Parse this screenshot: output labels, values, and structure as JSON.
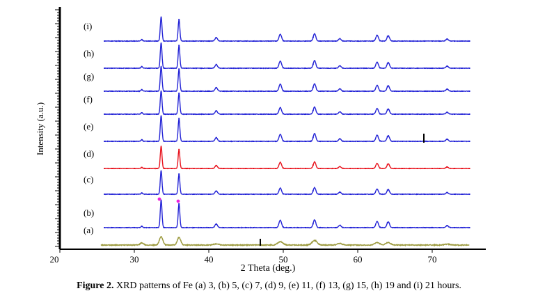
{
  "chart_data": {
    "type": "line",
    "title": "",
    "xlabel": "2 Theta (deg.)",
    "ylabel": "Intensity (a.u.)",
    "xlim": [
      20,
      76
    ],
    "x_ticks": [
      20,
      30,
      40,
      50,
      60,
      70
    ],
    "grid": false,
    "legend": "none",
    "peaks_2theta": [
      31.0,
      33.6,
      36.0,
      41.0,
      49.6,
      54.2,
      57.6,
      62.6,
      64.1,
      72.0
    ],
    "series": [
      {
        "label": "(i)",
        "color": "#2323d6",
        "x_start": 26,
        "x_end": 75,
        "peak_heights": [
          0.06,
          1.0,
          0.88,
          0.14,
          0.28,
          0.3,
          0.1,
          0.24,
          0.22,
          0.08
        ]
      },
      {
        "label": "(h)",
        "color": "#2323d6",
        "x_start": 26,
        "x_end": 75,
        "peak_heights": [
          0.06,
          1.0,
          0.88,
          0.14,
          0.28,
          0.3,
          0.1,
          0.24,
          0.22,
          0.08
        ]
      },
      {
        "label": "(g)",
        "color": "#2323d6",
        "x_start": 26,
        "x_end": 75,
        "peak_heights": [
          0.06,
          1.0,
          0.88,
          0.14,
          0.28,
          0.3,
          0.1,
          0.24,
          0.22,
          0.08
        ]
      },
      {
        "label": "(f)",
        "color": "#2323d6",
        "x_start": 26,
        "x_end": 75,
        "peak_heights": [
          0.06,
          1.0,
          0.88,
          0.14,
          0.28,
          0.3,
          0.1,
          0.24,
          0.22,
          0.08
        ]
      },
      {
        "label": "(e)",
        "color": "#2323d6",
        "x_start": 26,
        "x_end": 75,
        "peak_heights": [
          0.06,
          1.0,
          0.88,
          0.14,
          0.28,
          0.3,
          0.1,
          0.24,
          0.22,
          0.08
        ]
      },
      {
        "label": "(d)",
        "color": "#e8141e",
        "x_start": 26,
        "x_end": 75,
        "peak_heights": [
          0.04,
          0.95,
          0.8,
          0.12,
          0.26,
          0.28,
          0.08,
          0.22,
          0.2,
          0.06
        ]
      },
      {
        "label": "(c)",
        "color": "#2323d6",
        "x_start": 26,
        "x_end": 75,
        "peak_heights": [
          0.05,
          1.0,
          0.85,
          0.13,
          0.26,
          0.28,
          0.09,
          0.22,
          0.2,
          0.07
        ]
      },
      {
        "label": "(b)",
        "color": "#2323d6",
        "x_start": 26,
        "x_end": 75,
        "peak_heights": [
          0.05,
          1.0,
          0.85,
          0.13,
          0.27,
          0.28,
          0.09,
          0.23,
          0.21,
          0.07
        ]
      },
      {
        "label": "(a)",
        "color": "#9c9a3e",
        "x_start": 25.5,
        "x_end": 75,
        "peak_heights": [
          0.14,
          0.55,
          0.5,
          0.08,
          0.22,
          0.3,
          0.1,
          0.16,
          0.16,
          0.06
        ]
      }
    ]
  },
  "caption": {
    "prefix": "Figure 2.",
    "text": " XRD patterns of Fe (a) 3, (b) 5, (c) 7, (d) 9, (e) 11, (f) 13, (g) 15, (h) 19 and (i) 21 hours."
  }
}
